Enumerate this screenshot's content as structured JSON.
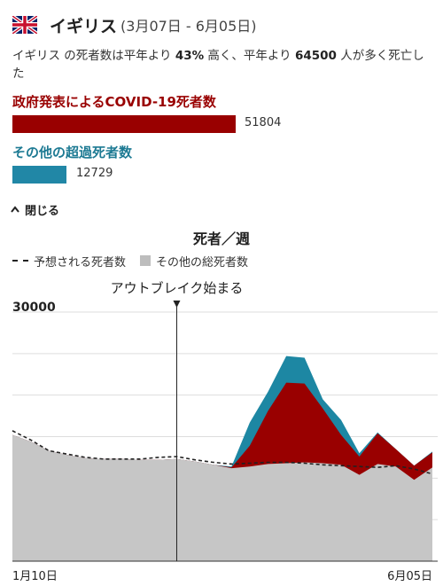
{
  "header": {
    "country": "イギリス",
    "dates": "(3月07日 - 6月05日)",
    "flag_icon": "uk-flag-icon"
  },
  "summary": {
    "part1": "イギリス の死者数は平年より ",
    "percent": "43%",
    "part2": " 高く、平年より ",
    "excess": "64500",
    "part3": " 人が多く死亡した"
  },
  "covid": {
    "label": "政府発表によるCOVID-19死者数",
    "value": "51804",
    "color": "#990000"
  },
  "other": {
    "label": "その他の超過死者数",
    "value": "12729",
    "color": "#2187a6"
  },
  "toggle": {
    "label": "閉じる",
    "icon": "chevron-up-icon"
  },
  "chart_data": {
    "type": "area",
    "title": "死者／週",
    "legend": [
      "予想される死者数",
      "その他の総死者数"
    ],
    "annotation": "アウトブレイク始まる",
    "y_tick_label": "30000",
    "x_labels": [
      "1月10日",
      "6月05日"
    ],
    "ylim": [
      0,
      30000
    ],
    "outbreak_week": 9,
    "series": [
      {
        "name": "予想される死者数",
        "values": [
          15700,
          14600,
          13300,
          12900,
          12500,
          12300,
          12300,
          12300,
          12500,
          12600,
          12200,
          11900,
          11700,
          11800,
          11900,
          11900,
          11800,
          11600,
          11500,
          11400,
          11300,
          11500,
          11100,
          10500
        ]
      },
      {
        "name": "その他の総死者数",
        "values": [
          15200,
          14400,
          13300,
          12800,
          12400,
          12300,
          12300,
          12200,
          12200,
          12300,
          12000,
          11600,
          11200,
          11400,
          11700,
          11800,
          11900,
          11800,
          11600,
          10400,
          11700,
          11400,
          9800,
          11300
        ]
      },
      {
        "name": "政府発表によるCOVID-19死者数",
        "values": [
          0,
          0,
          0,
          0,
          0,
          0,
          0,
          0,
          0,
          0,
          0,
          0,
          100,
          2500,
          6400,
          9700,
          9500,
          6600,
          3600,
          2200,
          3700,
          2100,
          1700,
          1800
        ]
      },
      {
        "name": "その他の超過死者数",
        "values": [
          0,
          0,
          0,
          0,
          0,
          0,
          0,
          0,
          0,
          0,
          0,
          0,
          100,
          2800,
          2300,
          3200,
          3100,
          1100,
          1800,
          400,
          100,
          0,
          0,
          100
        ]
      }
    ]
  }
}
